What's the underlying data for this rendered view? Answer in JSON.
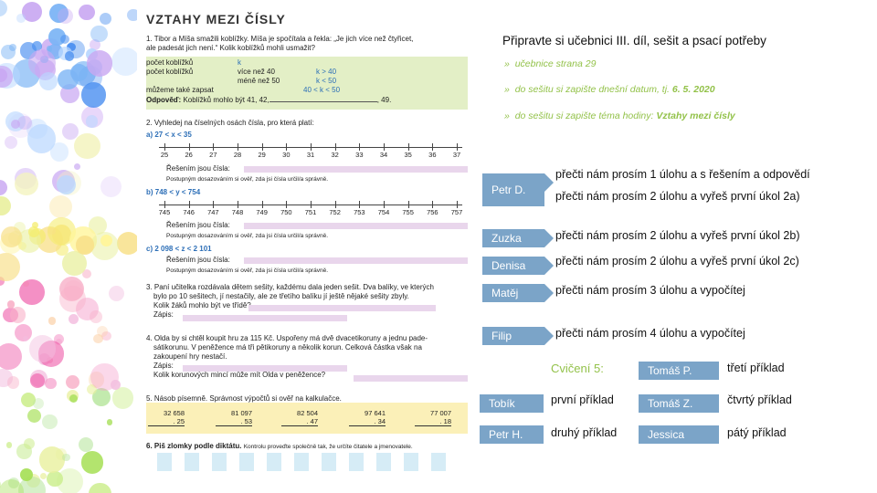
{
  "worksheet": {
    "title": "VZTAHY MEZI ČÍSLY",
    "ex1": {
      "text1": "1. Tibor a Míša smažili koblížky. Míša je spočítala a řekla: „Je jich více než čtyřicet,",
      "text2": "ale padesát jich není.“ Kolik koblížků mohli usmažit?",
      "r1c1": "počet koblížků",
      "r1c2": "k",
      "r2c1": "počet koblížků",
      "r2c2": "více než 40",
      "r2c3": "k > 40",
      "r3c2": "méně než 50",
      "r3c3": "k < 50",
      "r4c1": "můžeme také zapsat",
      "r4c3": "40 < k < 50",
      "answer_label": "Odpověď:",
      "answer_text": "Koblížků mohlo být 41, 42,",
      "answer_end": ", 49."
    },
    "ex2": {
      "text": "2. Vyhledej na číselných osách čísla, pro která platí:",
      "a_label": "a)  27 < x < 35",
      "a_ticks": [
        "25",
        "26",
        "27",
        "28",
        "29",
        "30",
        "31",
        "32",
        "33",
        "34",
        "35",
        "36",
        "37"
      ],
      "b_label": "b)  748 < y < 754",
      "b_ticks": [
        "745",
        "746",
        "747",
        "748",
        "749",
        "750",
        "751",
        "752",
        "753",
        "754",
        "755",
        "756",
        "757"
      ],
      "c_label": "c)  2 098 < z < 2 101",
      "solution": "Řešením jsou čísla:",
      "hint": "Postupným dosazováním si ověř, zda jsi čísla určil/a správně."
    },
    "ex3": {
      "text1": "3. Paní učitelka rozdávala dětem sešity, každému dala jeden sešit. Dva balíky, ve kterých",
      "text2": "bylo po 10 sešitech, jí nestačily, ale ze třetího balíku jí ještě nějaké sešity zbyly.",
      "text3": "Kolik žáků mohlo být ve třídě?",
      "zapis": "Zápis:"
    },
    "ex4": {
      "text1": "4. Olda by si chtěl koupit hru za 115 Kč. Uspořeny má dvě dvacetikoruny a jednu pade-",
      "text2": "sátikorunu. V peněžence má tři pětikoruny a několik korun. Celková částka však na",
      "text3": "zakoupení hry nestačí.",
      "zapis": "Zápis:",
      "question": "Kolik korunových mincí může mít Olda v peněžence?"
    },
    "ex5": {
      "text": "5. Násob písemně. Správnost výpočtů si ověř na kalkulačce.",
      "problems": [
        {
          "a": "32 658",
          "b": ". 25"
        },
        {
          "a": "81 097",
          "b": ". 53"
        },
        {
          "a": "82 504",
          "b": ". 47"
        },
        {
          "a": "97 641",
          "b": ". 34"
        },
        {
          "a": "77 007",
          "b": ". 18"
        }
      ]
    },
    "ex6": {
      "text": "6. Piš zlomky podle diktátu.",
      "hint": "Kontrolu proveďte společně tak, že určíte čitatele a jmenovatele."
    }
  },
  "header": "Připravte si učebnici III.  díl, sešit a psací potřeby",
  "bullets": [
    {
      "mark": "»",
      "text": "učebnice strana 29",
      "em": ""
    },
    {
      "mark": "»",
      "text": "do sešitu si zapište dnešní datum, tj. ",
      "em": "6. 5. 2020"
    },
    {
      "mark": "»",
      "text": "do sešitu si zapište téma hodiny: ",
      "em": "Vztahy mezi čísly"
    }
  ],
  "assignments": [
    {
      "name": "Petr D.",
      "task1": "přečti nám prosím 1 úlohu a s řešením a odpovědí",
      "task2": "přečti nám prosím 2 úlohu a vyřeš první úkol 2a)"
    },
    {
      "name": "Zuzka",
      "task": "přečti nám prosím 2 úlohu a vyřeš první úkol 2b)"
    },
    {
      "name": "Denisa",
      "task": "přečti nám prosím 2 úlohu a vyřeš první úkol 2c)"
    },
    {
      "name": "Matěj",
      "task": "přečti nám prosím 3 úlohu a vypočítej"
    },
    {
      "name": "Filip",
      "task": "přečti nám prosím 4 úlohu a vypočítej"
    }
  ],
  "cviceni": {
    "title": "Cvičení 5:",
    "items": [
      {
        "name": "Tobík",
        "task": "první příklad"
      },
      {
        "name": "Petr H.",
        "task": "druhý příklad"
      },
      {
        "name": "Tomáš P.",
        "task": "třetí příklad"
      },
      {
        "name": "Tomáš Z.",
        "task": "čtvrtý příklad"
      },
      {
        "name": "Jessica",
        "task": "pátý příklad"
      }
    ]
  },
  "colors": {
    "accent_green": "#93c24a",
    "tag_blue": "#7ba4c8"
  }
}
